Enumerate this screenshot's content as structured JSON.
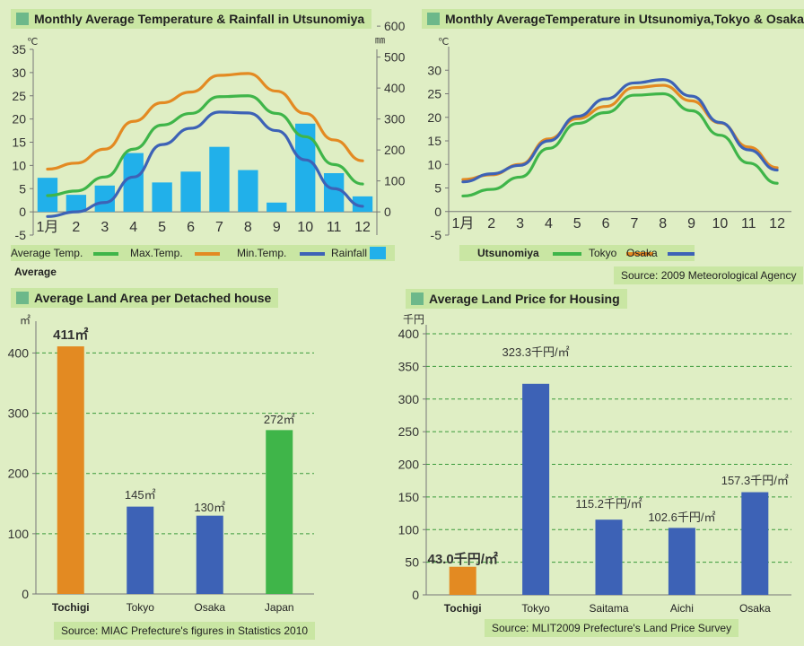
{
  "panel1": {
    "title": "Monthly Average Temperature & Rainfall in Utsunomiya",
    "unit_left": "℃",
    "unit_right": "㎜",
    "legend": {
      "avg_label": "Average Temp.",
      "max_label": "Max.Temp.",
      "min_label": "Min.Temp.",
      "rain_label": "Rainfall",
      "second_line": "Average"
    }
  },
  "panel2": {
    "title": "Monthly AverageTemperature in Utsunomiya,Tokyo & Osaka",
    "unit": "℃",
    "legend": {
      "utsu": "Utsunomiya",
      "tokyo": "Tokyo",
      "osaka": "Osaka"
    },
    "source": "Source: 2009 Meteorological Agency"
  },
  "panel3": {
    "title": "Average Land Area per Detached house",
    "unit": "㎡",
    "source": "Source: MIAC Prefecture's figures in Statistics 2010"
  },
  "panel4": {
    "title": "Average Land Price for Housing",
    "unit": "千円",
    "source": "Source: MLIT2009 Prefecture's Land Price Survey"
  },
  "colors": {
    "orange": "#e38a22",
    "green": "#3fb549",
    "blue": "#3d62b6",
    "rain": "#21b0ea",
    "grid": "#3a9a3a"
  },
  "chart_data": [
    {
      "type": "line",
      "title": "Monthly Average Temperature & Rainfall in Utsunomiya",
      "categories": [
        "1月",
        "2",
        "3",
        "4",
        "5",
        "6",
        "7",
        "8",
        "9",
        "10",
        "11",
        "12"
      ],
      "ylim": [
        -5,
        35
      ],
      "yticks": [
        -5,
        0,
        5,
        10,
        15,
        20,
        25,
        30,
        35
      ],
      "ylim_right": [
        0,
        600
      ],
      "yticks_right": [
        0,
        100,
        200,
        300,
        400,
        500,
        600
      ],
      "series": [
        {
          "name": "Average Temp.",
          "color": "#3fb549",
          "values": [
            3.5,
            4.5,
            7.5,
            13.5,
            18.7,
            21.2,
            24.8,
            25.0,
            21.2,
            16.2,
            10.2,
            6.0
          ]
        },
        {
          "name": "Max.Temp.",
          "color": "#e38a22",
          "values": [
            9.2,
            10.5,
            13.5,
            19.5,
            23.5,
            25.8,
            29.4,
            29.8,
            26.0,
            21.2,
            15.5,
            11.0
          ]
        },
        {
          "name": "Min.Temp.",
          "color": "#3d62b6",
          "values": [
            -1.0,
            0.0,
            2.0,
            7.5,
            14.5,
            18.0,
            21.5,
            21.3,
            17.5,
            11.2,
            5.0,
            1.2
          ]
        },
        {
          "name": "Rainfall",
          "type": "bar",
          "color": "#21b0ea",
          "values": [
            110,
            55,
            85,
            190,
            95,
            130,
            210,
            135,
            30,
            285,
            125,
            50
          ]
        }
      ]
    },
    {
      "type": "line",
      "title": "Monthly AverageTemperature in Utsunomiya,Tokyo & Osaka",
      "categories": [
        "1月",
        "2",
        "3",
        "4",
        "5",
        "6",
        "7",
        "8",
        "9",
        "10",
        "11",
        "12"
      ],
      "ylim": [
        -5,
        35
      ],
      "yticks": [
        -5,
        0,
        5,
        10,
        15,
        20,
        25,
        30
      ],
      "series": [
        {
          "name": "Utsunomiya",
          "color": "#3fb549",
          "values": [
            3.3,
            4.7,
            7.3,
            13.4,
            18.7,
            21.0,
            24.7,
            25.0,
            21.4,
            16.2,
            10.3,
            6.0
          ]
        },
        {
          "name": "Tokyo",
          "color": "#e38a22",
          "values": [
            6.8,
            7.8,
            10.0,
            15.4,
            19.7,
            22.3,
            26.3,
            26.8,
            23.5,
            18.8,
            13.7,
            9.3
          ]
        },
        {
          "name": "Osaka",
          "color": "#3d62b6",
          "values": [
            6.3,
            8.0,
            9.8,
            15.0,
            20.2,
            23.9,
            27.3,
            28.0,
            24.5,
            18.9,
            13.1,
            8.8
          ]
        }
      ]
    },
    {
      "type": "bar",
      "title": "Average Land Area per Detached house",
      "categories": [
        "Tochigi",
        "Tokyo",
        "Osaka",
        "Japan"
      ],
      "values": [
        411,
        145,
        130,
        272
      ],
      "labels": [
        "411㎡",
        "145㎡",
        "130㎡",
        "272㎡"
      ],
      "colors": [
        "#e38a22",
        "#3d62b6",
        "#3d62b6",
        "#3fb549"
      ],
      "ylim": [
        0,
        420
      ],
      "yticks": [
        0,
        100,
        200,
        300,
        400
      ],
      "grid": true
    },
    {
      "type": "bar",
      "title": "Average Land Price for Housing",
      "categories": [
        "Tochigi",
        "Tokyo",
        "Saitama",
        "Aichi",
        "Osaka"
      ],
      "values": [
        43.0,
        323.3,
        115.2,
        102.6,
        157.3
      ],
      "labels": [
        "43.0千円/㎡",
        "323.3千円/㎡",
        "115.2千円/㎡",
        "102.6千円/㎡",
        "157.3千円/㎡"
      ],
      "colors": [
        "#e38a22",
        "#3d62b6",
        "#3d62b6",
        "#3d62b6",
        "#3d62b6"
      ],
      "ylim": [
        0,
        400
      ],
      "yticks": [
        0,
        50,
        100,
        150,
        200,
        250,
        300,
        350,
        400
      ],
      "grid": true
    }
  ]
}
